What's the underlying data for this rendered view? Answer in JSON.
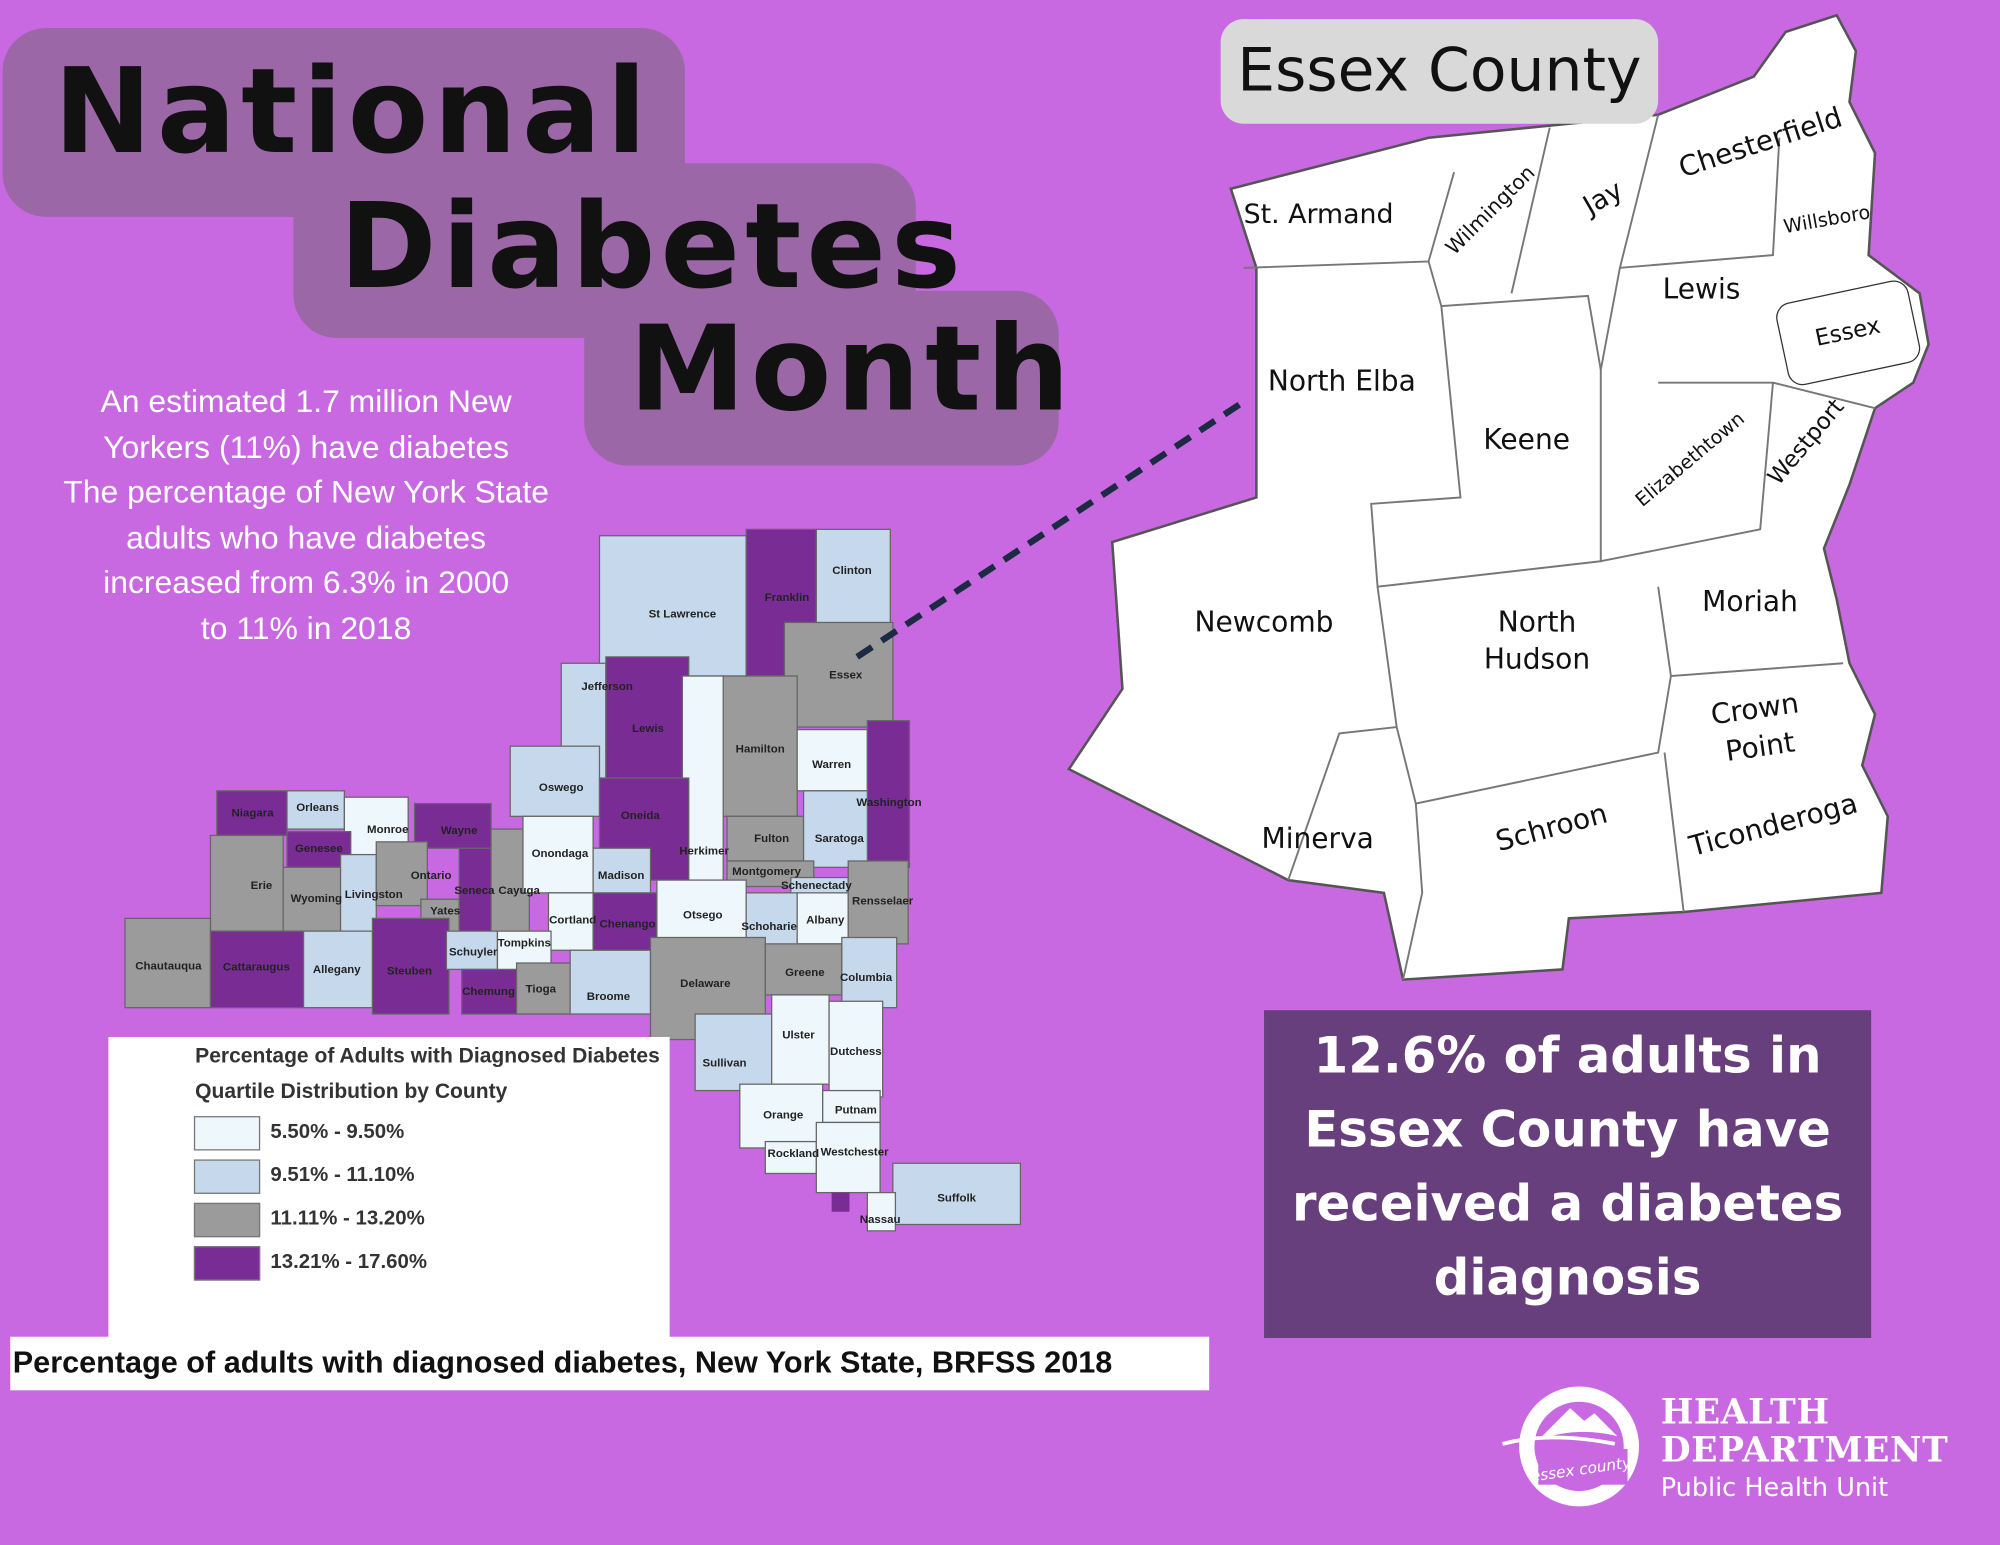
{
  "title": {
    "line1": "National",
    "line2": "Diabetes",
    "line3": "Month"
  },
  "intro": {
    "lines": [
      "An estimated 1.7 million New",
      "Yorkers (11%) have diabetes",
      "The percentage of New York State",
      "adults who have diabetes",
      "increased from 6.3% in 2000",
      "to 11% in 2018"
    ]
  },
  "colors": {
    "background": "#c969e2",
    "q1": "#eef7fb",
    "q2": "#c6d9ec",
    "q3": "#9b9b9b",
    "q4": "#7a2c95",
    "stat_box": "#683f7d",
    "connector": "#1c2a44"
  },
  "ny_map": {
    "counties": [
      {
        "name": "St Lawrence",
        "q": 2
      },
      {
        "name": "Franklin",
        "q": 4
      },
      {
        "name": "Clinton",
        "q": 2
      },
      {
        "name": "Essex",
        "q": 3
      },
      {
        "name": "Jefferson",
        "q": 2
      },
      {
        "name": "Lewis",
        "q": 4
      },
      {
        "name": "Hamilton",
        "q": 3
      },
      {
        "name": "Warren",
        "q": 1
      },
      {
        "name": "Washington",
        "q": 4
      },
      {
        "name": "Herkimer",
        "q": 1
      },
      {
        "name": "Oswego",
        "q": 2
      },
      {
        "name": "Oneida",
        "q": 4
      },
      {
        "name": "Fulton",
        "q": 3
      },
      {
        "name": "Saratoga",
        "q": 2
      },
      {
        "name": "Montgomery",
        "q": 3
      },
      {
        "name": "Schenectady",
        "q": 2
      },
      {
        "name": "Niagara",
        "q": 4
      },
      {
        "name": "Orleans",
        "q": 2
      },
      {
        "name": "Monroe",
        "q": 1
      },
      {
        "name": "Wayne",
        "q": 4
      },
      {
        "name": "Genesee",
        "q": 4
      },
      {
        "name": "Erie",
        "q": 3
      },
      {
        "name": "Wyoming",
        "q": 3
      },
      {
        "name": "Livingston",
        "q": 2
      },
      {
        "name": "Ontario",
        "q": 3
      },
      {
        "name": "Yates",
        "q": 3
      },
      {
        "name": "Seneca",
        "q": 4
      },
      {
        "name": "Cayuga",
        "q": 3
      },
      {
        "name": "Onondaga",
        "q": 1
      },
      {
        "name": "Madison",
        "q": 2
      },
      {
        "name": "Cortland",
        "q": 1
      },
      {
        "name": "Chenango",
        "q": 4
      },
      {
        "name": "Otsego",
        "q": 1
      },
      {
        "name": "Schoharie",
        "q": 2
      },
      {
        "name": "Albany",
        "q": 1
      },
      {
        "name": "Rensselaer",
        "q": 3
      },
      {
        "name": "Chautauqua",
        "q": 3
      },
      {
        "name": "Cattaraugus",
        "q": 4
      },
      {
        "name": "Allegany",
        "q": 2
      },
      {
        "name": "Steuben",
        "q": 4
      },
      {
        "name": "Schuyler",
        "q": 2
      },
      {
        "name": "Tompkins",
        "q": 1
      },
      {
        "name": "Chemung",
        "q": 4
      },
      {
        "name": "Tioga",
        "q": 3
      },
      {
        "name": "Broome",
        "q": 2
      },
      {
        "name": "Delaware",
        "q": 3
      },
      {
        "name": "Greene",
        "q": 3
      },
      {
        "name": "Columbia",
        "q": 2
      },
      {
        "name": "Sullivan",
        "q": 2
      },
      {
        "name": "Ulster",
        "q": 1
      },
      {
        "name": "Dutchess",
        "q": 1
      },
      {
        "name": "Orange",
        "q": 1
      },
      {
        "name": "Putnam",
        "q": 1
      },
      {
        "name": "Rockland",
        "q": 1
      },
      {
        "name": "Westchester",
        "q": 1
      },
      {
        "name": "Suffolk",
        "q": 2
      },
      {
        "name": "Nassau",
        "q": 1
      }
    ]
  },
  "legend": {
    "title": "Percentage of Adults with Diagnosed Diabetes",
    "subtitle": "Quartile Distribution by County",
    "items": [
      {
        "label": "5.50% - 9.50%",
        "q": 1
      },
      {
        "label": "9.51% - 11.10%",
        "q": 2
      },
      {
        "label": "11.11% - 13.20%",
        "q": 3
      },
      {
        "label": "13.21% - 17.60%",
        "q": 4
      }
    ]
  },
  "caption": "Percentage of adults with diagnosed diabetes, New York State, BRFSS 2018",
  "essex_map": {
    "title": "Essex County",
    "towns": [
      "St. Armand",
      "Wilmington",
      "Jay",
      "Chesterfield",
      "Willsboro",
      "Lewis",
      "Essex",
      "North Elba",
      "Keene",
      "Elizabethtown",
      "Westport",
      "Newcomb",
      "North Hudson",
      "Moriah",
      "Crown Point",
      "Minerva",
      "Schroon",
      "Ticonderoga"
    ]
  },
  "stat": {
    "lines": [
      "12.6% of adults in",
      "Essex County  have",
      "received a diabetes",
      "diagnosis"
    ]
  },
  "logo": {
    "emblem_text": "essex county",
    "line1": "HEALTH",
    "line2": "DEPARTMENT",
    "line3": "Public Health Unit"
  }
}
